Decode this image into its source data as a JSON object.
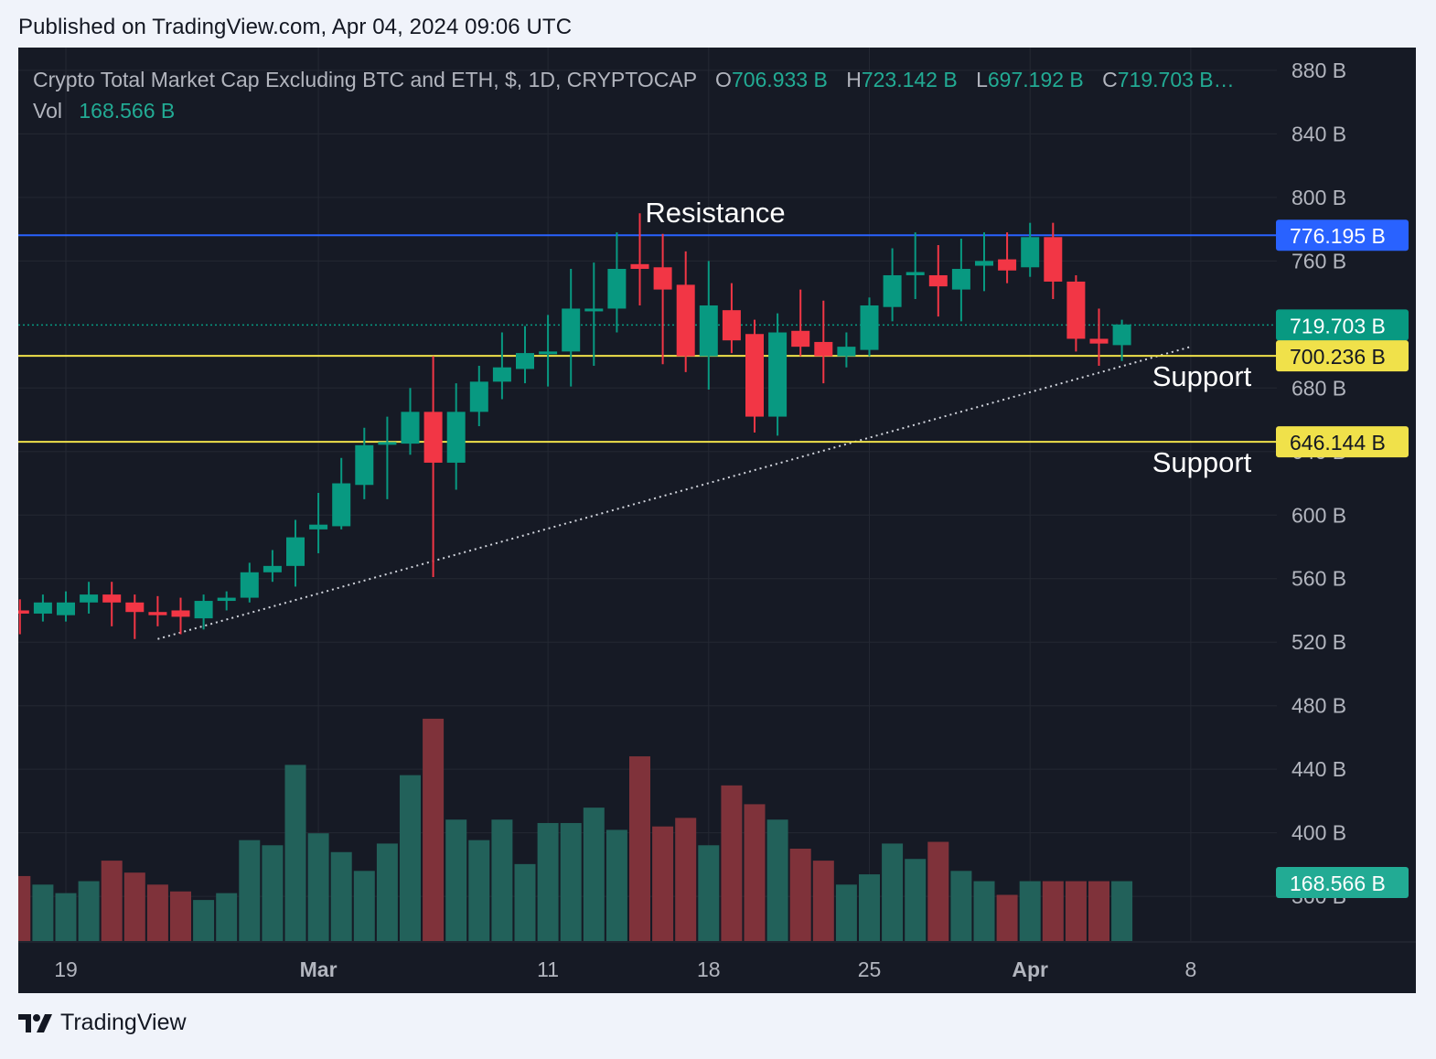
{
  "header": {
    "published": "Published on TradingView.com, Apr 04, 2024 09:06 UTC"
  },
  "footer": {
    "brand": "TradingView"
  },
  "legend": {
    "symbol": "Crypto Total Market Cap Excluding BTC and ETH, $, 1D, CRYPTOCAP",
    "open_label": "O",
    "open": "706.933 B",
    "high_label": "H",
    "high": "723.142 B",
    "low_label": "L",
    "low": "697.192 B",
    "close_label": "C",
    "close": "719.703 B…",
    "vol_label": "Vol",
    "vol": "168.566 B"
  },
  "colors": {
    "up": "#089981",
    "down": "#f23645",
    "vol_up": "#22615a",
    "vol_down": "#7f323a",
    "resistance": "#2962ff",
    "support": "#f0e14a",
    "background": "#161a25",
    "grid": "#242833",
    "axis_text": "#b2b5be"
  },
  "chart_data": {
    "type": "candlestick",
    "yunit": "B",
    "ylim": [
      500,
      890
    ],
    "y_ticks": [
      "880 B",
      "840 B",
      "800 B",
      "760 B",
      "680 B",
      "640 B",
      "600 B",
      "560 B",
      "520 B",
      "480 B",
      "440 B",
      "400 B",
      "360 B"
    ],
    "x_ticks": [
      "19",
      "Mar",
      "11",
      "18",
      "25",
      "Apr",
      "8"
    ],
    "x_tick_days": [
      0,
      11,
      21,
      28,
      35,
      42,
      49
    ],
    "candles": [
      {
        "d": -2,
        "o": 540,
        "h": 547,
        "l": 525,
        "c": 538
      },
      {
        "d": -1,
        "o": 538,
        "h": 550,
        "l": 533,
        "c": 545
      },
      {
        "d": 0,
        "o": 537,
        "h": 552,
        "l": 533,
        "c": 545
      },
      {
        "d": 1,
        "o": 545,
        "h": 558,
        "l": 538,
        "c": 550
      },
      {
        "d": 2,
        "o": 550,
        "h": 558,
        "l": 530,
        "c": 545
      },
      {
        "d": 3,
        "o": 545,
        "h": 550,
        "l": 522,
        "c": 539
      },
      {
        "d": 4,
        "o": 539,
        "h": 549,
        "l": 530,
        "c": 537
      },
      {
        "d": 5,
        "o": 540,
        "h": 548,
        "l": 525,
        "c": 536
      },
      {
        "d": 6,
        "o": 535,
        "h": 550,
        "l": 528,
        "c": 546
      },
      {
        "d": 7,
        "o": 546,
        "h": 552,
        "l": 540,
        "c": 548
      },
      {
        "d": 8,
        "o": 548,
        "h": 570,
        "l": 545,
        "c": 564
      },
      {
        "d": 9,
        "o": 564,
        "h": 578,
        "l": 558,
        "c": 568
      },
      {
        "d": 10,
        "o": 568,
        "h": 597,
        "l": 555,
        "c": 586
      },
      {
        "d": 11,
        "o": 591,
        "h": 614,
        "l": 576,
        "c": 594
      },
      {
        "d": 12,
        "o": 593,
        "h": 636,
        "l": 591,
        "c": 620
      },
      {
        "d": 13,
        "o": 619,
        "h": 655,
        "l": 610,
        "c": 644
      },
      {
        "d": 14,
        "o": 646,
        "h": 662,
        "l": 610,
        "c": 646
      },
      {
        "d": 15,
        "o": 645,
        "h": 680,
        "l": 638,
        "c": 665
      },
      {
        "d": 16,
        "o": 665,
        "h": 700,
        "l": 561,
        "c": 633
      },
      {
        "d": 17,
        "o": 633,
        "h": 683,
        "l": 616,
        "c": 665
      },
      {
        "d": 18,
        "o": 665,
        "h": 694,
        "l": 656,
        "c": 684
      },
      {
        "d": 19,
        "o": 684,
        "h": 715,
        "l": 673,
        "c": 693
      },
      {
        "d": 20,
        "o": 692,
        "h": 719,
        "l": 683,
        "c": 702
      },
      {
        "d": 21,
        "o": 702,
        "h": 726,
        "l": 681,
        "c": 703
      },
      {
        "d": 22,
        "o": 703,
        "h": 755,
        "l": 681,
        "c": 730
      },
      {
        "d": 23,
        "o": 730,
        "h": 759,
        "l": 694,
        "c": 730
      },
      {
        "d": 24,
        "o": 730,
        "h": 778,
        "l": 715,
        "c": 755
      },
      {
        "d": 25,
        "o": 758,
        "h": 790,
        "l": 732,
        "c": 755
      },
      {
        "d": 26,
        "o": 756,
        "h": 777,
        "l": 695,
        "c": 742
      },
      {
        "d": 27,
        "o": 745,
        "h": 766,
        "l": 690,
        "c": 700
      },
      {
        "d": 28,
        "o": 700,
        "h": 760,
        "l": 679,
        "c": 732
      },
      {
        "d": 29,
        "o": 729,
        "h": 746,
        "l": 702,
        "c": 710
      },
      {
        "d": 30,
        "o": 714,
        "h": 723,
        "l": 652,
        "c": 662
      },
      {
        "d": 31,
        "o": 662,
        "h": 727,
        "l": 650,
        "c": 715
      },
      {
        "d": 32,
        "o": 716,
        "h": 742,
        "l": 700,
        "c": 706
      },
      {
        "d": 33,
        "o": 709,
        "h": 735,
        "l": 683,
        "c": 700
      },
      {
        "d": 34,
        "o": 700,
        "h": 715,
        "l": 693,
        "c": 706
      },
      {
        "d": 35,
        "o": 704,
        "h": 737,
        "l": 700,
        "c": 732
      },
      {
        "d": 36,
        "o": 731,
        "h": 768,
        "l": 722,
        "c": 751
      },
      {
        "d": 37,
        "o": 751,
        "h": 778,
        "l": 736,
        "c": 753
      },
      {
        "d": 38,
        "o": 751,
        "h": 770,
        "l": 725,
        "c": 744
      },
      {
        "d": 39,
        "o": 742,
        "h": 774,
        "l": 722,
        "c": 755
      },
      {
        "d": 40,
        "o": 757,
        "h": 778,
        "l": 741,
        "c": 760
      },
      {
        "d": 41,
        "o": 761,
        "h": 778,
        "l": 746,
        "c": 754
      },
      {
        "d": 42,
        "o": 756,
        "h": 784,
        "l": 750,
        "c": 775
      },
      {
        "d": 43,
        "o": 775,
        "h": 784,
        "l": 736,
        "c": 747
      },
      {
        "d": 44,
        "o": 747,
        "h": 751,
        "l": 703,
        "c": 711
      },
      {
        "d": 45,
        "o": 711,
        "h": 730,
        "l": 694,
        "c": 708
      },
      {
        "d": 46,
        "o": 707,
        "h": 723,
        "l": 697,
        "c": 720
      }
    ],
    "volume_ticks": [
      "360 B",
      "400 B",
      "440 B",
      "480 B"
    ],
    "volume": [
      {
        "d": -2,
        "v": 0.38
      },
      {
        "d": -1,
        "v": 0.33
      },
      {
        "d": 0,
        "v": 0.28
      },
      {
        "d": 1,
        "v": 0.35
      },
      {
        "d": 2,
        "v": 0.47
      },
      {
        "d": 3,
        "v": 0.4
      },
      {
        "d": 4,
        "v": 0.33
      },
      {
        "d": 5,
        "v": 0.29
      },
      {
        "d": 6,
        "v": 0.24
      },
      {
        "d": 7,
        "v": 0.28
      },
      {
        "d": 8,
        "v": 0.59
      },
      {
        "d": 9,
        "v": 0.56
      },
      {
        "d": 10,
        "v": 1.03
      },
      {
        "d": 11,
        "v": 0.63
      },
      {
        "d": 12,
        "v": 0.52
      },
      {
        "d": 13,
        "v": 0.41
      },
      {
        "d": 14,
        "v": 0.57
      },
      {
        "d": 15,
        "v": 0.97
      },
      {
        "d": 16,
        "v": 1.3
      },
      {
        "d": 17,
        "v": 0.71
      },
      {
        "d": 18,
        "v": 0.59
      },
      {
        "d": 19,
        "v": 0.71
      },
      {
        "d": 20,
        "v": 0.45
      },
      {
        "d": 21,
        "v": 0.69
      },
      {
        "d": 22,
        "v": 0.69
      },
      {
        "d": 23,
        "v": 0.78
      },
      {
        "d": 24,
        "v": 0.65
      },
      {
        "d": 25,
        "v": 1.08
      },
      {
        "d": 26,
        "v": 0.67
      },
      {
        "d": 27,
        "v": 0.72
      },
      {
        "d": 28,
        "v": 0.56
      },
      {
        "d": 29,
        "v": 0.91
      },
      {
        "d": 30,
        "v": 0.8
      },
      {
        "d": 31,
        "v": 0.71
      },
      {
        "d": 32,
        "v": 0.54
      },
      {
        "d": 33,
        "v": 0.47
      },
      {
        "d": 34,
        "v": 0.33
      },
      {
        "d": 35,
        "v": 0.39
      },
      {
        "d": 36,
        "v": 0.57
      },
      {
        "d": 37,
        "v": 0.48
      },
      {
        "d": 38,
        "v": 0.58
      },
      {
        "d": 39,
        "v": 0.41
      },
      {
        "d": 40,
        "v": 0.35
      },
      {
        "d": 41,
        "v": 0.27
      },
      {
        "d": 42,
        "v": 0.35
      },
      {
        "d": 43,
        "v": 0.35
      },
      {
        "d": 44,
        "v": 0.35
      },
      {
        "d": 45,
        "v": 0.35
      },
      {
        "d": 46,
        "v": 0.35
      }
    ],
    "levels": [
      {
        "name": "Resistance",
        "value": 776.195,
        "label": "776.195 B",
        "kind": "resistance"
      },
      {
        "name": "Support",
        "value": 700.236,
        "label": "700.236 B",
        "kind": "support"
      },
      {
        "name": "Support",
        "value": 646.144,
        "label": "646.144 B",
        "kind": "support"
      }
    ],
    "current_price": {
      "value": 719.703,
      "label": "719.703 B"
    },
    "current_volume": {
      "label": "168.566 B"
    },
    "trendline": {
      "from": {
        "d": 4,
        "price": 522
      },
      "to": {
        "d": 49,
        "price": 706
      }
    }
  }
}
